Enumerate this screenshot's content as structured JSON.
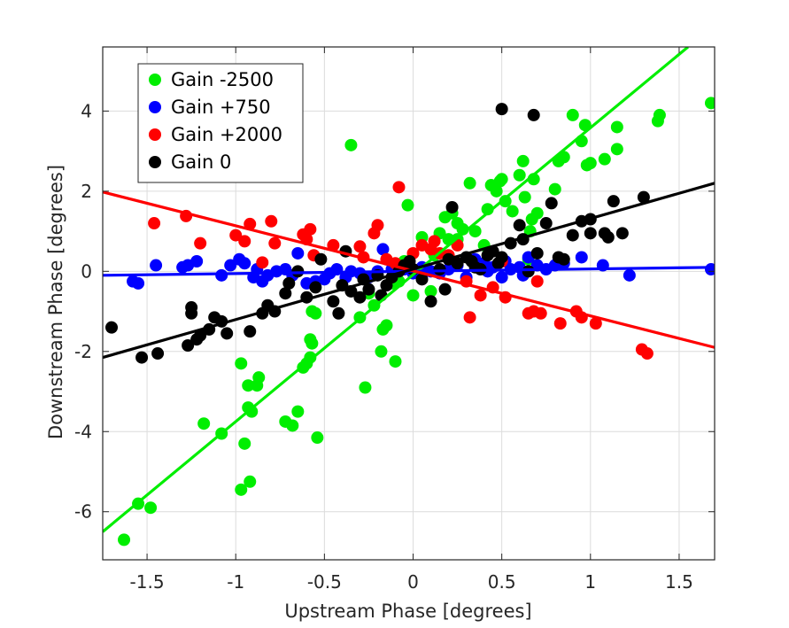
{
  "chart_data": {
    "type": "scatter",
    "xlabel": "Upstream Phase [degrees]",
    "ylabel": "Downstream Phase [degrees]",
    "xlim": [
      -1.75,
      1.7
    ],
    "ylim": [
      -7.2,
      5.6
    ],
    "xticks": [
      -1.5,
      -1,
      -0.5,
      0,
      0.5,
      1,
      1.5
    ],
    "xtick_labels": [
      "-1.5",
      "-1",
      "-0.5",
      "0",
      "0.5",
      "1",
      "1.5"
    ],
    "yticks": [
      -6,
      -4,
      -2,
      0,
      2,
      4
    ],
    "ytick_labels": [
      "-6",
      "-4",
      "-2",
      "0",
      "2",
      "4"
    ],
    "grid": true,
    "legend_position": "top-left",
    "series": [
      {
        "name": "Gain -2500",
        "color": "#00ee00",
        "fit": {
          "x": [
            -1.75,
            1.55
          ],
          "y": [
            -6.5,
            5.6
          ]
        },
        "points": [
          [
            -1.63,
            -6.7
          ],
          [
            -1.55,
            -5.8
          ],
          [
            -1.48,
            -5.9
          ],
          [
            -1.18,
            -3.8
          ],
          [
            -1.08,
            -4.05
          ],
          [
            -0.97,
            -5.45
          ],
          [
            -0.92,
            -5.25
          ],
          [
            -0.95,
            -4.3
          ],
          [
            -0.97,
            -2.3
          ],
          [
            -0.93,
            -2.85
          ],
          [
            -0.88,
            -2.85
          ],
          [
            -0.87,
            -2.65
          ],
          [
            -0.91,
            -3.5
          ],
          [
            -0.93,
            -3.4
          ],
          [
            -0.72,
            -3.75
          ],
          [
            -0.68,
            -3.85
          ],
          [
            -0.65,
            -3.5
          ],
          [
            -0.62,
            -2.4
          ],
          [
            -0.58,
            -2.15
          ],
          [
            -0.6,
            -2.3
          ],
          [
            -0.57,
            -1.8
          ],
          [
            -0.58,
            -1.7
          ],
          [
            -0.55,
            -1.05
          ],
          [
            -0.57,
            -1.0
          ],
          [
            -0.54,
            -4.15
          ],
          [
            -0.35,
            3.15
          ],
          [
            -0.3,
            -1.15
          ],
          [
            -0.27,
            -2.9
          ],
          [
            -0.25,
            -0.55
          ],
          [
            -0.22,
            -0.85
          ],
          [
            -0.18,
            -2.0
          ],
          [
            -0.17,
            -1.45
          ],
          [
            -0.15,
            -1.35
          ],
          [
            -0.12,
            -0.3
          ],
          [
            -0.1,
            -2.25
          ],
          [
            -0.08,
            -0.25
          ],
          [
            -0.05,
            0.25
          ],
          [
            -0.03,
            1.65
          ],
          [
            0.0,
            -0.6
          ],
          [
            0.05,
            0.85
          ],
          [
            0.1,
            -0.5
          ],
          [
            0.12,
            0.4
          ],
          [
            0.15,
            0.95
          ],
          [
            0.18,
            1.35
          ],
          [
            0.2,
            0.8
          ],
          [
            0.22,
            1.45
          ],
          [
            0.25,
            1.2
          ],
          [
            0.25,
            0.8
          ],
          [
            0.28,
            1.05
          ],
          [
            0.32,
            2.2
          ],
          [
            0.35,
            1.0
          ],
          [
            0.4,
            0.65
          ],
          [
            0.42,
            1.55
          ],
          [
            0.44,
            2.15
          ],
          [
            0.47,
            2.0
          ],
          [
            0.49,
            2.25
          ],
          [
            0.5,
            2.3
          ],
          [
            0.52,
            1.75
          ],
          [
            0.56,
            1.5
          ],
          [
            0.6,
            2.4
          ],
          [
            0.62,
            2.75
          ],
          [
            0.63,
            1.85
          ],
          [
            0.65,
            0.3
          ],
          [
            0.66,
            1.0
          ],
          [
            0.68,
            2.3
          ],
          [
            0.7,
            1.45
          ],
          [
            0.67,
            1.3
          ],
          [
            0.8,
            2.05
          ],
          [
            0.82,
            2.75
          ],
          [
            0.85,
            2.85
          ],
          [
            0.9,
            3.9
          ],
          [
            0.95,
            3.25
          ],
          [
            0.97,
            3.65
          ],
          [
            0.98,
            2.65
          ],
          [
            1.0,
            2.7
          ],
          [
            1.08,
            2.8
          ],
          [
            1.15,
            3.6
          ],
          [
            1.15,
            3.05
          ],
          [
            1.38,
            3.75
          ],
          [
            1.39,
            3.9
          ],
          [
            1.68,
            4.2
          ]
        ]
      },
      {
        "name": "Gain +750",
        "color": "#0000ff",
        "fit": {
          "x": [
            -1.75,
            1.7
          ],
          "y": [
            -0.1,
            0.1
          ]
        },
        "points": [
          [
            -1.58,
            -0.25
          ],
          [
            -1.55,
            -0.3
          ],
          [
            -1.45,
            0.15
          ],
          [
            -1.3,
            0.1
          ],
          [
            -1.27,
            0.15
          ],
          [
            -1.22,
            0.25
          ],
          [
            -1.08,
            -0.1
          ],
          [
            -1.03,
            0.15
          ],
          [
            -0.98,
            0.3
          ],
          [
            -0.95,
            0.2
          ],
          [
            -0.9,
            -0.15
          ],
          [
            -0.88,
            0.05
          ],
          [
            -0.85,
            -0.25
          ],
          [
            -0.82,
            -0.1
          ],
          [
            -0.77,
            0.0
          ],
          [
            -0.72,
            0.05
          ],
          [
            -0.68,
            -0.1
          ],
          [
            -0.65,
            0.45
          ],
          [
            -0.6,
            -0.3
          ],
          [
            -0.55,
            -0.25
          ],
          [
            -0.5,
            -0.2
          ],
          [
            -0.47,
            -0.05
          ],
          [
            -0.43,
            0.05
          ],
          [
            -0.38,
            -0.15
          ],
          [
            -0.35,
            0.0
          ],
          [
            -0.3,
            -0.05
          ],
          [
            -0.25,
            -0.15
          ],
          [
            -0.2,
            0.0
          ],
          [
            -0.17,
            0.55
          ],
          [
            -0.12,
            0.05
          ],
          [
            -0.08,
            0.1
          ],
          [
            -0.05,
            0.05
          ],
          [
            0.0,
            -0.05
          ],
          [
            0.05,
            0.1
          ],
          [
            0.1,
            0.0
          ],
          [
            0.15,
            -0.05
          ],
          [
            0.2,
            0.05
          ],
          [
            0.25,
            0.15
          ],
          [
            0.3,
            -0.15
          ],
          [
            0.35,
            0.3
          ],
          [
            0.4,
            0.2
          ],
          [
            0.42,
            0.0
          ],
          [
            0.45,
            0.1
          ],
          [
            0.5,
            -0.15
          ],
          [
            0.52,
            0.25
          ],
          [
            0.55,
            0.05
          ],
          [
            0.6,
            0.1
          ],
          [
            0.62,
            -0.1
          ],
          [
            0.65,
            0.35
          ],
          [
            0.7,
            0.15
          ],
          [
            0.75,
            0.05
          ],
          [
            0.8,
            0.15
          ],
          [
            0.85,
            0.2
          ],
          [
            0.95,
            0.35
          ],
          [
            1.07,
            0.15
          ],
          [
            1.22,
            -0.1
          ],
          [
            1.68,
            0.05
          ]
        ]
      },
      {
        "name": "Gain +2000",
        "color": "#ff0000",
        "fit": {
          "x": [
            -1.75,
            1.7
          ],
          "y": [
            1.98,
            -1.9
          ]
        },
        "points": [
          [
            -1.46,
            1.2
          ],
          [
            -1.28,
            1.38
          ],
          [
            -1.2,
            0.7
          ],
          [
            -1.0,
            0.9
          ],
          [
            -0.95,
            0.75
          ],
          [
            -0.92,
            1.18
          ],
          [
            -0.85,
            0.22
          ],
          [
            -0.8,
            1.25
          ],
          [
            -0.78,
            0.7
          ],
          [
            -0.62,
            0.92
          ],
          [
            -0.6,
            0.8
          ],
          [
            -0.58,
            1.05
          ],
          [
            -0.56,
            0.4
          ],
          [
            -0.45,
            0.65
          ],
          [
            -0.3,
            0.62
          ],
          [
            -0.28,
            0.35
          ],
          [
            -0.22,
            0.95
          ],
          [
            -0.2,
            1.15
          ],
          [
            -0.15,
            0.3
          ],
          [
            -0.1,
            0.2
          ],
          [
            -0.08,
            2.1
          ],
          [
            0.0,
            0.45
          ],
          [
            0.05,
            0.65
          ],
          [
            0.1,
            0.55
          ],
          [
            0.12,
            0.75
          ],
          [
            0.15,
            0.45
          ],
          [
            0.2,
            0.4
          ],
          [
            0.25,
            0.65
          ],
          [
            0.3,
            -0.25
          ],
          [
            0.32,
            -1.15
          ],
          [
            0.38,
            -0.6
          ],
          [
            0.45,
            -0.4
          ],
          [
            0.5,
            0.25
          ],
          [
            0.52,
            -0.65
          ],
          [
            0.65,
            -1.05
          ],
          [
            0.68,
            -1.0
          ],
          [
            0.7,
            -0.25
          ],
          [
            0.72,
            -1.05
          ],
          [
            0.83,
            -1.3
          ],
          [
            0.92,
            -1.0
          ],
          [
            0.95,
            -1.15
          ],
          [
            1.03,
            -1.3
          ],
          [
            1.29,
            -1.95
          ],
          [
            1.32,
            -2.05
          ]
        ]
      },
      {
        "name": "Gain 0",
        "color": "#000000",
        "fit": {
          "x": [
            -1.75,
            1.7
          ],
          "y": [
            -2.15,
            2.2
          ]
        },
        "points": [
          [
            -1.7,
            -1.4
          ],
          [
            -1.53,
            -2.15
          ],
          [
            -1.44,
            -2.05
          ],
          [
            -1.27,
            -1.85
          ],
          [
            -1.25,
            -0.9
          ],
          [
            -1.25,
            -1.05
          ],
          [
            -1.22,
            -1.7
          ],
          [
            -1.2,
            -1.6
          ],
          [
            -1.15,
            -1.45
          ],
          [
            -1.12,
            -1.15
          ],
          [
            -1.08,
            -1.25
          ],
          [
            -1.05,
            -1.55
          ],
          [
            -0.92,
            -1.5
          ],
          [
            -0.85,
            -1.05
          ],
          [
            -0.82,
            -0.85
          ],
          [
            -0.78,
            -1.0
          ],
          [
            -0.72,
            -0.55
          ],
          [
            -0.7,
            -0.3
          ],
          [
            -0.65,
            0.0
          ],
          [
            -0.6,
            -0.65
          ],
          [
            -0.55,
            -0.4
          ],
          [
            -0.52,
            0.3
          ],
          [
            -0.45,
            -0.75
          ],
          [
            -0.42,
            -1.05
          ],
          [
            -0.4,
            -0.35
          ],
          [
            -0.38,
            0.5
          ],
          [
            -0.35,
            -0.5
          ],
          [
            -0.3,
            -0.65
          ],
          [
            -0.28,
            -0.2
          ],
          [
            -0.25,
            -0.45
          ],
          [
            -0.2,
            -0.1
          ],
          [
            -0.18,
            -0.6
          ],
          [
            -0.15,
            -0.35
          ],
          [
            -0.12,
            -0.15
          ],
          [
            -0.08,
            0.0
          ],
          [
            -0.05,
            0.15
          ],
          [
            -0.02,
            0.25
          ],
          [
            0.0,
            0.05
          ],
          [
            0.05,
            -0.2
          ],
          [
            0.1,
            -0.75
          ],
          [
            0.15,
            0.05
          ],
          [
            0.18,
            -0.45
          ],
          [
            0.2,
            0.3
          ],
          [
            0.22,
            1.6
          ],
          [
            0.25,
            0.2
          ],
          [
            0.3,
            0.35
          ],
          [
            0.33,
            0.25
          ],
          [
            0.35,
            0.1
          ],
          [
            0.38,
            0.05
          ],
          [
            0.42,
            0.4
          ],
          [
            0.45,
            0.5
          ],
          [
            0.48,
            0.2
          ],
          [
            0.5,
            0.35
          ],
          [
            0.5,
            4.05
          ],
          [
            0.55,
            0.7
          ],
          [
            0.6,
            1.15
          ],
          [
            0.62,
            0.8
          ],
          [
            0.65,
            0.0
          ],
          [
            0.68,
            3.9
          ],
          [
            0.7,
            0.45
          ],
          [
            0.75,
            1.2
          ],
          [
            0.78,
            1.7
          ],
          [
            0.82,
            0.35
          ],
          [
            0.85,
            0.3
          ],
          [
            0.9,
            0.9
          ],
          [
            0.95,
            1.25
          ],
          [
            1.0,
            1.3
          ],
          [
            1.0,
            0.95
          ],
          [
            1.08,
            0.95
          ],
          [
            1.1,
            0.85
          ],
          [
            1.13,
            1.75
          ],
          [
            1.18,
            0.95
          ],
          [
            1.3,
            1.85
          ]
        ]
      }
    ]
  }
}
